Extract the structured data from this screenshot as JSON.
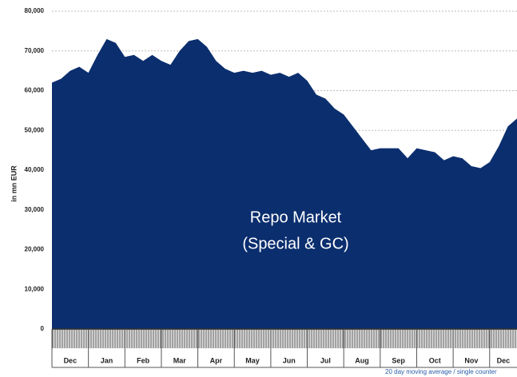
{
  "chart_data": {
    "type": "area",
    "y_label": "in mn EUR",
    "annotation": [
      "Repo Market",
      "(Special & GC)"
    ],
    "footnote": "20 day moving average / single counter",
    "months": [
      "Dec",
      "Jan",
      "Feb",
      "Mar",
      "Apr",
      "May",
      "Jun",
      "Jul",
      "Aug",
      "Sep",
      "Oct",
      "Nov",
      "Dec"
    ],
    "color": "#0b2e6e",
    "values": [
      62000,
      63000,
      65000,
      66000,
      64500,
      69000,
      73000,
      72000,
      68500,
      69000,
      67500,
      69000,
      67500,
      66500,
      70000,
      72500,
      73000,
      71000,
      67500,
      65500,
      64500,
      65000,
      64500,
      65000,
      64000,
      64500,
      63500,
      64500,
      62500,
      59000,
      58000,
      55500,
      54000,
      51000,
      48000,
      45000,
      45500,
      45500,
      45500,
      43000,
      45500,
      45000,
      44500,
      42500,
      43500,
      43000,
      41000,
      40500,
      42000,
      46000,
      51000,
      53000
    ],
    "ylim": [
      0,
      80000
    ],
    "yticks": [
      0,
      {
        "value": 10000,
        "label": "10,000"
      },
      {
        "value": 20000,
        "label": "20,000"
      },
      {
        "value": 30000,
        "label": "30,000"
      },
      {
        "value": 40000,
        "label": "40,000"
      },
      {
        "value": 50000,
        "label": "50,000"
      },
      {
        "value": 60000,
        "label": "60,000"
      },
      {
        "value": 70000,
        "label": "70,000"
      },
      {
        "value": 80000,
        "label": "80,000"
      }
    ],
    "grid": true
  }
}
